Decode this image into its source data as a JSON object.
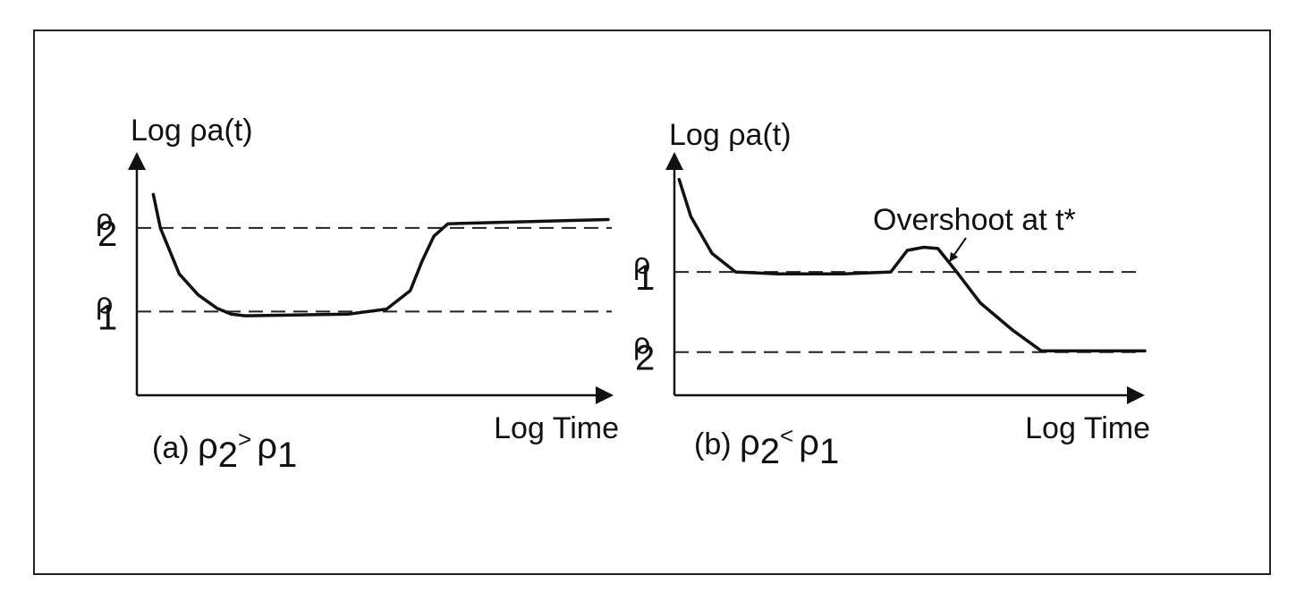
{
  "chart_data": [
    {
      "type": "line",
      "caption": {
        "prefix": "(a) ",
        "a_sym": "ρ",
        "a_sub": "2",
        "op": ">",
        "b_sym": "ρ",
        "b_sub": "1"
      },
      "ylabel": {
        "prefix": "Log ",
        "sym": "ρ",
        "rest": "a(t)"
      },
      "xlabel": "Log Time",
      "y_ticks": [
        {
          "sym": "ρ",
          "sub": "2",
          "value": 2.0
        },
        {
          "sym": "ρ",
          "sub": "1",
          "value": 1.0
        }
      ],
      "xlim": [
        0,
        10
      ],
      "ylim": [
        0,
        2.8
      ],
      "grid": false,
      "series": [
        {
          "x": [
            0.35,
            0.5,
            0.9,
            1.3,
            1.7,
            2.0,
            2.3,
            4.5,
            5.3,
            5.8,
            6.05,
            6.3,
            6.6,
            10.0
          ],
          "y": [
            2.4,
            2.0,
            1.45,
            1.2,
            1.04,
            0.97,
            0.95,
            0.97,
            1.03,
            1.25,
            1.6,
            1.9,
            2.05,
            2.1
          ]
        }
      ]
    },
    {
      "type": "line",
      "caption": {
        "prefix": "(b) ",
        "a_sym": "ρ",
        "a_sub": "2",
        "op": "<",
        "b_sym": "ρ",
        "b_sub": "1"
      },
      "ylabel": {
        "prefix": "Log ",
        "sym": "ρ",
        "rest": "a(t)"
      },
      "xlabel": "Log Time",
      "y_ticks": [
        {
          "sym": "ρ",
          "sub": "1",
          "value": 2.0
        },
        {
          "sym": "ρ",
          "sub": "2",
          "value": 0.7
        }
      ],
      "xlim": [
        0,
        10
      ],
      "ylim": [
        0,
        3.8
      ],
      "grid": false,
      "annotations": [
        {
          "text": "Overshoot at t*",
          "x": 5.4,
          "y": 2.4
        }
      ],
      "series": [
        {
          "x": [
            0.1,
            0.35,
            0.8,
            1.3,
            2.2,
            3.6,
            4.6,
            4.95,
            5.3,
            5.6,
            6.0,
            6.5,
            7.2,
            7.8,
            10.0
          ],
          "y": [
            3.5,
            2.9,
            2.3,
            2.0,
            1.97,
            1.97,
            2.0,
            2.35,
            2.4,
            2.38,
            2.0,
            1.5,
            1.05,
            0.72,
            0.72
          ]
        }
      ]
    }
  ]
}
